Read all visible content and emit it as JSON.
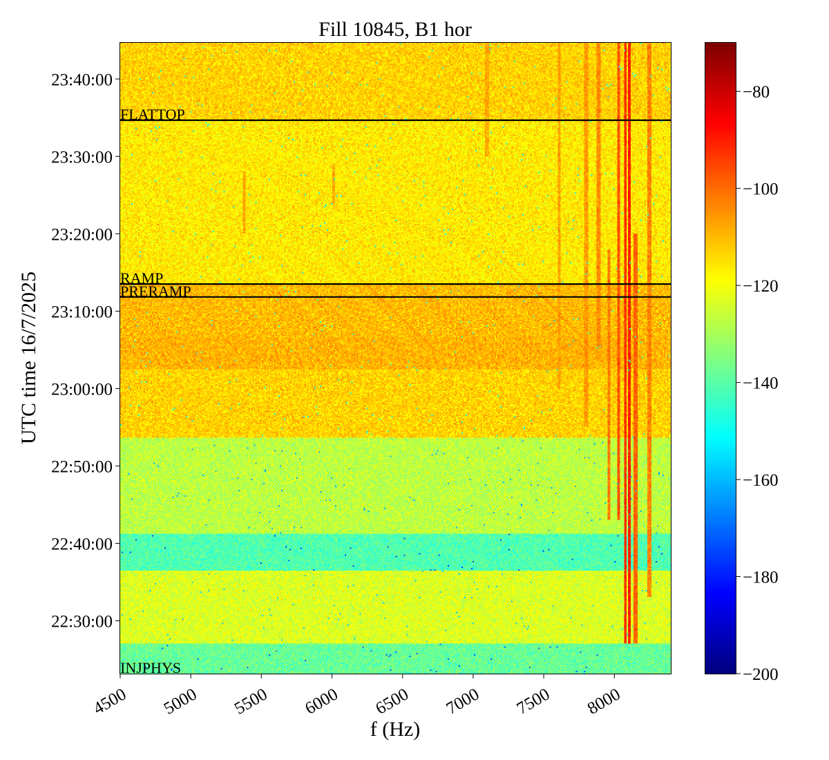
{
  "chart_data": {
    "type": "heatmap",
    "title": "Fill 10845, B1 hor",
    "xlabel": "f (Hz)",
    "ylabel": "UTC time 16/7/2025",
    "xlim": [
      4500,
      8400
    ],
    "ylim": [
      "22:23:10",
      "23:44:40"
    ],
    "x_ticks": [
      4500,
      5000,
      5500,
      6000,
      6500,
      7000,
      7500,
      8000
    ],
    "x_tick_labels": [
      "4500",
      "5000",
      "5500",
      "6000",
      "6500",
      "7000",
      "7500",
      "8000"
    ],
    "y_ticks": [
      "22:30:00",
      "22:40:00",
      "22:50:00",
      "23:00:00",
      "23:10:00",
      "23:20:00",
      "23:30:00",
      "23:40:00"
    ],
    "y_tick_labels": [
      "22:30:00",
      "22:40:00",
      "22:50:00",
      "23:00:00",
      "23:10:00",
      "23:20:00",
      "23:30:00",
      "23:40:00"
    ],
    "colorbar": {
      "colormap": "jet",
      "vmin": -200,
      "vmax": -70,
      "ticks": [
        -80,
        -100,
        -120,
        -140,
        -160,
        -180,
        -200
      ],
      "tick_labels": [
        "−80",
        "−100",
        "−120",
        "−140",
        "−160",
        "−180",
        "−200"
      ]
    },
    "annotations": [
      {
        "label": "FLATTOP",
        "time": "23:34:40"
      },
      {
        "label": "RAMP",
        "time": "23:13:30"
      },
      {
        "label": "PRERAMP",
        "time": "23:11:50"
      },
      {
        "label": "INJPHYS",
        "time": "22:23:10"
      }
    ],
    "time_bands_db": [
      {
        "from": "22:23:10",
        "to": "22:27:00",
        "level": -138
      },
      {
        "from": "22:27:00",
        "to": "22:36:30",
        "level": -123
      },
      {
        "from": "22:36:30",
        "to": "22:41:10",
        "level": -141
      },
      {
        "from": "22:41:10",
        "to": "22:53:40",
        "level": -127
      },
      {
        "from": "22:53:40",
        "to": "23:02:30",
        "level": -113
      },
      {
        "from": "23:02:30",
        "to": "23:06:30",
        "level": -109
      },
      {
        "from": "23:06:30",
        "to": "23:13:30",
        "level": -110
      },
      {
        "from": "23:13:30",
        "to": "23:34:40",
        "level": -116
      },
      {
        "from": "23:34:40",
        "to": "23:44:40",
        "level": -113
      }
    ],
    "spectral_lines": [
      {
        "freq": 7960,
        "from": "22:43:00",
        "to": "23:18:00",
        "level": -102
      },
      {
        "freq": 8030,
        "from": "22:43:00",
        "to": "23:44:40",
        "level": -97
      },
      {
        "freq": 8080,
        "from": "22:27:00",
        "to": "23:44:40",
        "level": -92
      },
      {
        "freq": 8110,
        "from": "22:27:00",
        "to": "23:44:40",
        "level": -90
      },
      {
        "freq": 8150,
        "from": "22:27:00",
        "to": "23:20:00",
        "level": -99
      },
      {
        "freq": 8250,
        "from": "22:33:00",
        "to": "23:44:40",
        "level": -103
      },
      {
        "freq": 7890,
        "from": "23:05:00",
        "to": "23:44:40",
        "level": -104
      },
      {
        "freq": 7800,
        "from": "22:55:00",
        "to": "23:44:40",
        "level": -106
      },
      {
        "freq": 7610,
        "from": "23:00:00",
        "to": "23:44:40",
        "level": -107
      },
      {
        "freq": 7100,
        "from": "23:30:00",
        "to": "23:44:40",
        "level": -108
      },
      {
        "freq": 5380,
        "from": "23:20:00",
        "to": "23:28:00",
        "level": -107
      },
      {
        "freq": 6010,
        "from": "23:24:00",
        "to": "23:29:00",
        "level": -108
      }
    ]
  }
}
